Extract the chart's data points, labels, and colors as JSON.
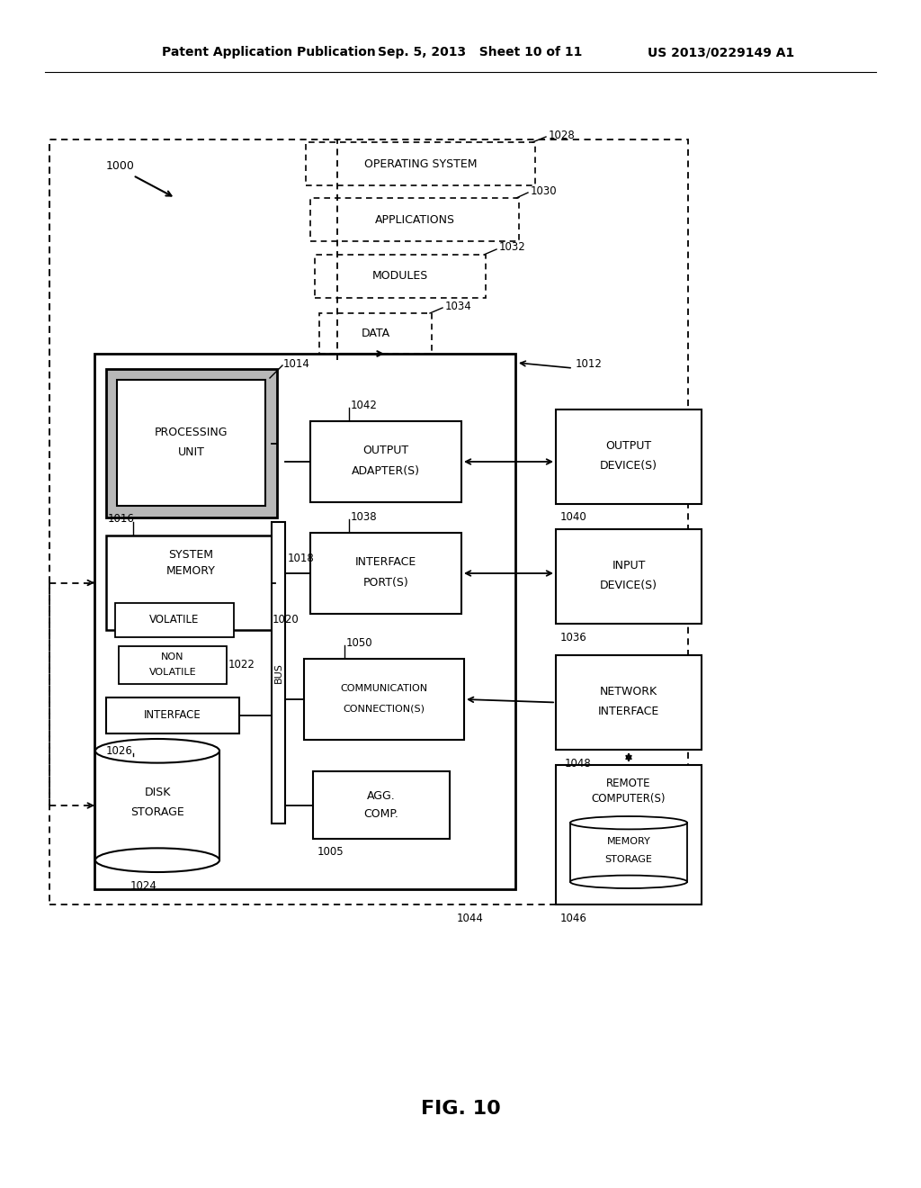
{
  "title_left": "Patent Application Publication",
  "title_center": "Sep. 5, 2013   Sheet 10 of 11",
  "title_right": "US 2013/0229149 A1",
  "fig_label": "FIG. 10",
  "background_color": "#ffffff",
  "text_color": "#000000"
}
